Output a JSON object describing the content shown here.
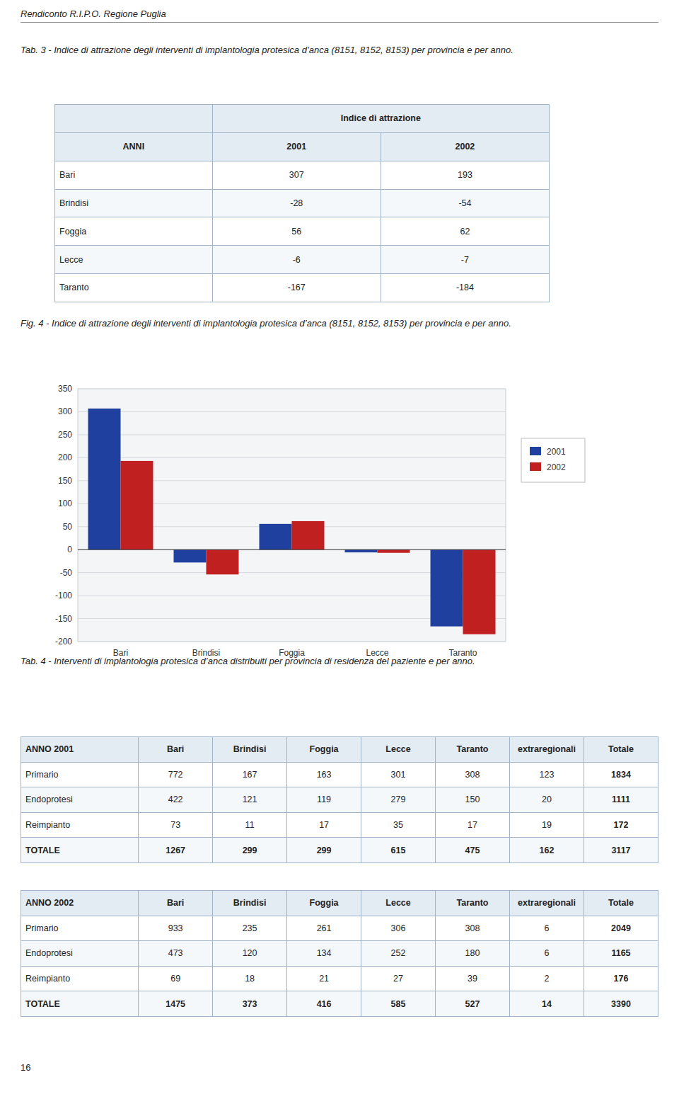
{
  "header_text": "Rendiconto R.I.P.O. Regione Puglia",
  "page_number": "16",
  "table3": {
    "title": "Tab. 3 - Indice di attrazione degli interventi di implantologia protesica d’anca (8151, 8152, 8153) per provincia e per anno.",
    "header_main": "Indice di attrazione",
    "col_headers": [
      "ANNI",
      "2001",
      "2002"
    ],
    "rows": [
      [
        "Bari",
        "307",
        "193"
      ],
      [
        "Brindisi",
        "-28",
        "-54"
      ],
      [
        "Foggia",
        "56",
        "62"
      ],
      [
        "Lecce",
        "-6",
        "-7"
      ],
      [
        "Taranto",
        "-167",
        "-184"
      ]
    ]
  },
  "chart_data": {
    "type": "bar",
    "title": "Fig. 4 - Indice di attrazione degli interventi di implantologia protesica d’anca (8151, 8152, 8153) per provincia e per anno.",
    "categories": [
      "Bari",
      "Brindisi",
      "Foggia",
      "Lecce",
      "Taranto"
    ],
    "series": [
      {
        "name": "2001",
        "color": "#2040A0",
        "values": [
          307,
          -28,
          56,
          -6,
          -167
        ]
      },
      {
        "name": "2002",
        "color": "#C02020",
        "values": [
          193,
          -54,
          62,
          -7,
          -184
        ]
      }
    ],
    "ylim": [
      -200,
      350
    ],
    "yticks": [
      -200,
      -150,
      -100,
      -50,
      0,
      50,
      100,
      150,
      200,
      250,
      300,
      350
    ],
    "grid": true,
    "legend": "right"
  },
  "table4_title": "Tab. 4 - Interventi di implantologia protesica d’anca distribuiti per provincia di residenza del paziente e per anno.",
  "table4_2001": {
    "col_headers": [
      "ANNO 2001",
      "Bari",
      "Brindisi",
      "Foggia",
      "Lecce",
      "Taranto",
      "extraregionali",
      "Totale"
    ],
    "rows": [
      [
        "Primario",
        "772",
        "167",
        "163",
        "301",
        "308",
        "123",
        "1834"
      ],
      [
        "Endoprotesi",
        "422",
        "121",
        "119",
        "279",
        "150",
        "20",
        "1111"
      ],
      [
        "Reimpianto",
        "73",
        "11",
        "17",
        "35",
        "17",
        "19",
        "172"
      ],
      [
        "TOTALE",
        "1267",
        "299",
        "299",
        "615",
        "475",
        "162",
        "3117"
      ]
    ]
  },
  "table4_2002": {
    "col_headers": [
      "ANNO 2002",
      "Bari",
      "Brindisi",
      "Foggia",
      "Lecce",
      "Taranto",
      "extraregionali",
      "Totale"
    ],
    "rows": [
      [
        "Primario",
        "933",
        "235",
        "261",
        "306",
        "308",
        "6",
        "2049"
      ],
      [
        "Endoprotesi",
        "473",
        "120",
        "134",
        "252",
        "180",
        "6",
        "1165"
      ],
      [
        "Reimpianto",
        "69",
        "18",
        "21",
        "27",
        "39",
        "2",
        "176"
      ],
      [
        "TOTALE",
        "1475",
        "373",
        "416",
        "585",
        "527",
        "14",
        "3390"
      ]
    ]
  }
}
